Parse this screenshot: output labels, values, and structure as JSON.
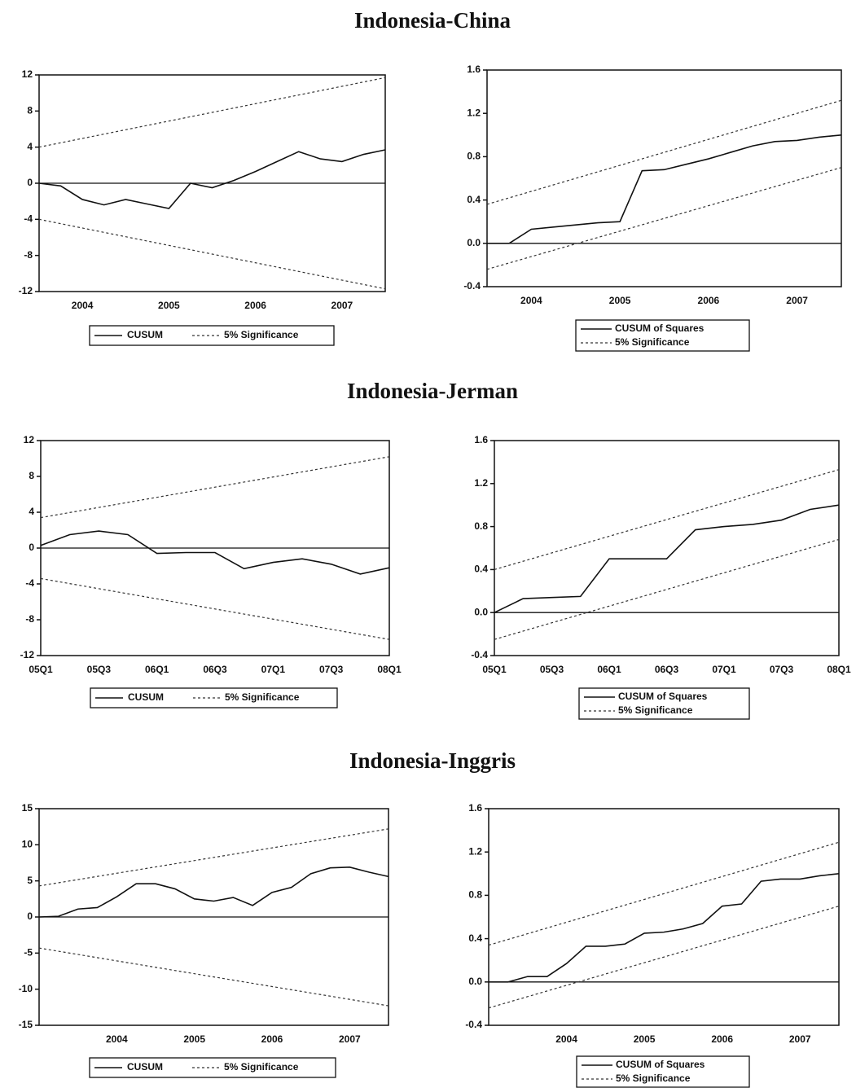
{
  "headings": [
    "Indonesia-China",
    "Indonesia-Jerman",
    "Indonesia-Inggris"
  ],
  "chart_data": [
    {
      "type": "line",
      "categories": [
        null,
        null,
        "2004",
        null,
        null,
        null,
        "2005",
        null,
        null,
        null,
        "2006",
        null,
        null,
        null,
        "2007",
        null,
        null
      ],
      "series": [
        {
          "name": "CUSUM",
          "color": "#111111",
          "values": [
            0,
            -0.3,
            -1.8,
            -2.4,
            -1.8,
            -2.3,
            -2.8,
            0,
            -0.5,
            0.3,
            1.3,
            2.4,
            3.5,
            2.7,
            2.4,
            3.2,
            3.7
          ]
        }
      ],
      "bounds": {
        "name": "5% Significance",
        "upper": [
          4,
          11.7
        ],
        "lower": [
          -4,
          -11.7
        ]
      },
      "ylim": [
        -12,
        12
      ],
      "yticks": [
        -12,
        -8,
        -4,
        0,
        4,
        8,
        12
      ]
    },
    {
      "type": "line",
      "categories": [
        null,
        null,
        "2004",
        null,
        null,
        null,
        "2005",
        null,
        null,
        null,
        "2006",
        null,
        null,
        null,
        "2007",
        null,
        null
      ],
      "series": [
        {
          "name": "CUSUM of Squares",
          "color": "#111111",
          "values": [
            0,
            0,
            0.13,
            0.15,
            0.17,
            0.19,
            0.2,
            0.67,
            0.68,
            0.73,
            0.78,
            0.84,
            0.9,
            0.94,
            0.95,
            0.98,
            1.0
          ]
        }
      ],
      "bounds": {
        "name": "5% Significance",
        "upper": [
          0.36,
          1.32
        ],
        "lower": [
          -0.24,
          0.7
        ]
      },
      "ylim": [
        -0.4,
        1.6
      ],
      "yticks": [
        -0.4,
        {
          "value": 0,
          "label": "0.0"
        },
        0.4,
        0.8,
        1.2,
        1.6
      ]
    },
    {
      "type": "line",
      "categories": [
        "05Q1",
        null,
        "05Q3",
        null,
        "06Q1",
        null,
        "06Q3",
        null,
        "07Q1",
        null,
        "07Q3",
        null,
        "08Q1"
      ],
      "series": [
        {
          "name": "CUSUM",
          "color": "#111111",
          "values": [
            0.3,
            1.5,
            1.9,
            1.5,
            -0.6,
            -0.5,
            -0.5,
            -2.3,
            -1.6,
            -1.2,
            -1.8,
            -2.9,
            -2.2
          ]
        }
      ],
      "bounds": {
        "name": "5% Significance",
        "upper": [
          3.4,
          10.2
        ],
        "lower": [
          -3.4,
          -10.2
        ]
      },
      "ylim": [
        -12,
        12
      ],
      "yticks": [
        -12,
        -8,
        -4,
        0,
        4,
        8,
        12
      ]
    },
    {
      "type": "line",
      "categories": [
        "05Q1",
        null,
        "05Q3",
        null,
        "06Q1",
        null,
        "06Q3",
        null,
        "07Q1",
        null,
        "07Q3",
        null,
        "08Q1"
      ],
      "series": [
        {
          "name": "CUSUM of Squares",
          "color": "#111111",
          "values": [
            0,
            0.13,
            0.14,
            0.15,
            0.5,
            0.5,
            0.5,
            0.77,
            0.8,
            0.82,
            0.86,
            0.96,
            1.0
          ]
        }
      ],
      "bounds": {
        "name": "5% Significance",
        "upper": [
          0.4,
          1.33
        ],
        "lower": [
          -0.25,
          0.68
        ]
      },
      "ylim": [
        -0.4,
        1.6
      ],
      "yticks": [
        -0.4,
        {
          "value": 0,
          "label": "0.0"
        },
        0.4,
        0.8,
        1.2,
        1.6
      ]
    },
    {
      "type": "line",
      "categories": [
        null,
        null,
        null,
        null,
        "2004",
        null,
        null,
        null,
        "2005",
        null,
        null,
        null,
        "2006",
        null,
        null,
        null,
        "2007",
        null,
        null
      ],
      "series": [
        {
          "name": "CUSUM",
          "color": "#111111",
          "values": [
            0,
            0.1,
            1.1,
            1.3,
            2.8,
            4.6,
            4.6,
            3.9,
            2.5,
            2.2,
            2.7,
            1.6,
            3.4,
            4.1,
            6.0,
            6.8,
            6.9,
            6.2,
            5.6
          ]
        }
      ],
      "bounds": {
        "name": "5% Significance",
        "upper": [
          4.3,
          12.2
        ],
        "lower": [
          -4.3,
          -12.3
        ]
      },
      "ylim": [
        -15,
        15
      ],
      "yticks": [
        -15,
        -10,
        -5,
        0,
        5,
        10,
        15
      ]
    },
    {
      "type": "line",
      "categories": [
        null,
        null,
        null,
        null,
        "2004",
        null,
        null,
        null,
        "2005",
        null,
        null,
        null,
        "2006",
        null,
        null,
        null,
        "2007",
        null,
        null
      ],
      "series": [
        {
          "name": "CUSUM of Squares",
          "color": "#111111",
          "values": [
            0,
            0,
            0.05,
            0.05,
            0.17,
            0.33,
            0.33,
            0.35,
            0.45,
            0.46,
            0.49,
            0.54,
            0.7,
            0.72,
            0.93,
            0.95,
            0.95,
            0.98,
            1.0
          ]
        }
      ],
      "bounds": {
        "name": "5% Significance",
        "upper": [
          0.34,
          1.29
        ],
        "lower": [
          -0.24,
          0.7
        ]
      },
      "ylim": [
        -0.4,
        1.6
      ],
      "yticks": [
        -0.4,
        {
          "value": 0,
          "label": "0.0"
        },
        0.4,
        0.8,
        1.2,
        1.6
      ]
    }
  ]
}
